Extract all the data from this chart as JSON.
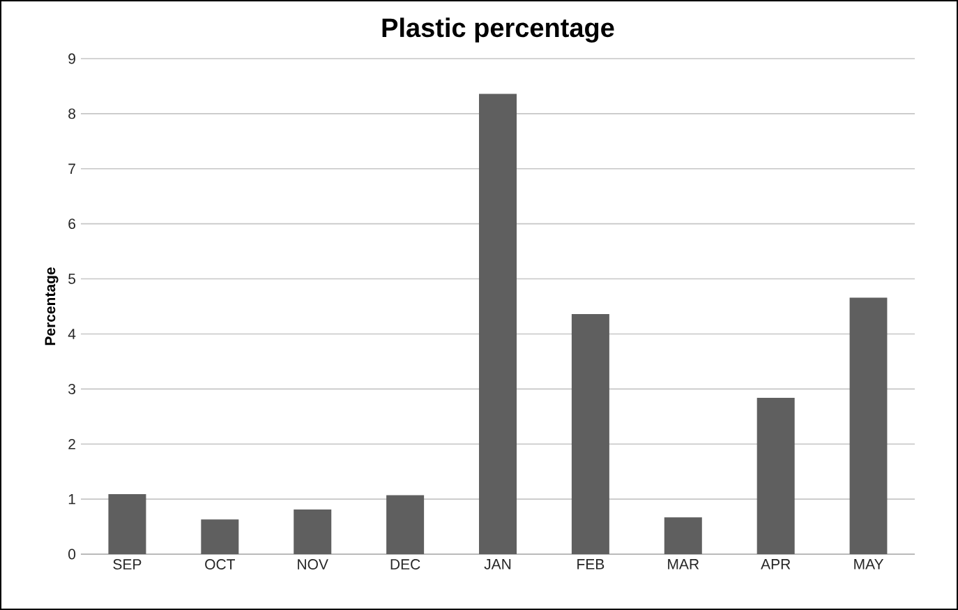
{
  "chart_data": {
    "type": "bar",
    "title": "Plastic percentage",
    "ylabel": "Percentage",
    "categories": [
      "SEP",
      "OCT",
      "NOV",
      "DEC",
      "JAN",
      "FEB",
      "MAR",
      "APR",
      "MAY"
    ],
    "values": [
      1.09,
      0.63,
      0.81,
      1.07,
      8.36,
      4.36,
      0.67,
      2.84,
      4.66
    ],
    "color": "#5f5f5f",
    "ylim": [
      0,
      9
    ],
    "yticks": [
      0,
      1,
      2,
      3,
      4,
      5,
      6,
      7,
      8,
      9
    ],
    "grid": "y"
  }
}
